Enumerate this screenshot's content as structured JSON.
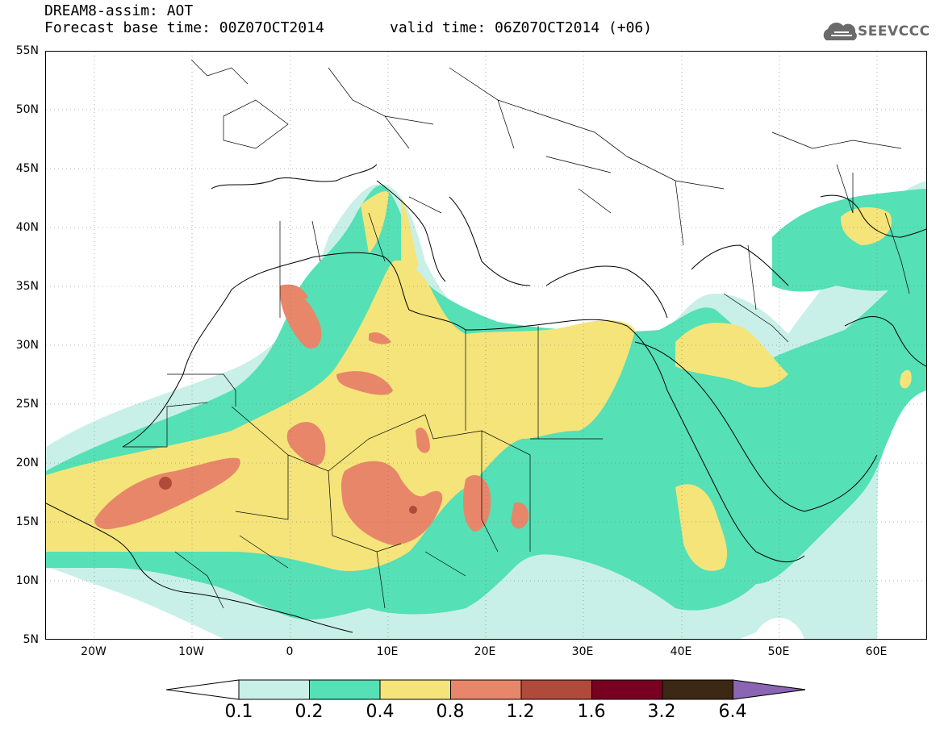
{
  "header": {
    "title_line1": "DREAM8-assim: AOT",
    "title_line2": "Forecast base time: 00Z07OCT2014",
    "valid_time": "valid time: 06Z07OCT2014 (+06)",
    "logo_text": "SEEVCCC",
    "logo_icon": "cloud-icon"
  },
  "map": {
    "projection": "lat-lon",
    "lon_range": [
      -25,
      65
    ],
    "lat_range": [
      5,
      55
    ],
    "lat_labels": [
      "55N",
      "50N",
      "45N",
      "40N",
      "35N",
      "30N",
      "25N",
      "20N",
      "15N",
      "10N",
      "5N"
    ],
    "lon_labels": [
      "20W",
      "10W",
      "0",
      "10E",
      "20E",
      "30E",
      "40E",
      "50E",
      "60E"
    ],
    "field": "aerosol optical thickness (dust)"
  },
  "colorbar": {
    "labels": [
      "0.1",
      "0.2",
      "0.4",
      "0.8",
      "1.2",
      "1.6",
      "3.2",
      "6.4"
    ],
    "colors": [
      "#ffffff",
      "#c8f0e8",
      "#55e0b5",
      "#f5e47a",
      "#e8866a",
      "#b04a3a",
      "#780020",
      "#3c2814",
      "#8c64b4"
    ]
  }
}
